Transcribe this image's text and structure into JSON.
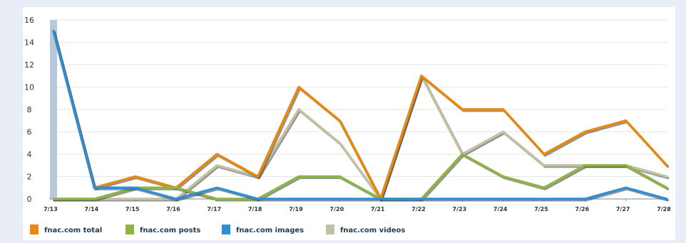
{
  "chart_data": {
    "type": "line",
    "categories": [
      "7/13",
      "7/14",
      "7/15",
      "7/16",
      "7/17",
      "7/18",
      "7/19",
      "7/20",
      "7/21",
      "7/22",
      "7/23",
      "7/24",
      "7/25",
      "7/26",
      "7/27",
      "7/28"
    ],
    "series": [
      {
        "name": "fnac.com total",
        "color": "#e8890e",
        "values": [
          15,
          1,
          2,
          1,
          4,
          2,
          10,
          7,
          0,
          11,
          8,
          8,
          4,
          6,
          7,
          3
        ]
      },
      {
        "name": "fnac.com posts",
        "color": "#8db544",
        "values": [
          0,
          0,
          1,
          1,
          0,
          0,
          2,
          2,
          0,
          0,
          4,
          2,
          1,
          3,
          3,
          1
        ]
      },
      {
        "name": "fnac.com images",
        "color": "#2f8fd6",
        "values": [
          15,
          1,
          1,
          0,
          1,
          0,
          0,
          0,
          0,
          0,
          0,
          0,
          0,
          0,
          1,
          0
        ]
      },
      {
        "name": "fnac.com videos",
        "color": "#c2c1a3",
        "values": [
          0,
          0,
          0,
          0,
          3,
          2,
          8,
          5,
          0,
          11,
          4,
          6,
          3,
          3,
          3,
          2
        ]
      }
    ],
    "y_ticks": [
      "0",
      "2",
      "4",
      "6",
      "8",
      "10",
      "12",
      "14",
      "16"
    ],
    "ylim": [
      0,
      16
    ],
    "grid": true,
    "legend_position": "bottom-left",
    "highlight_color": "#b9c7dc"
  }
}
